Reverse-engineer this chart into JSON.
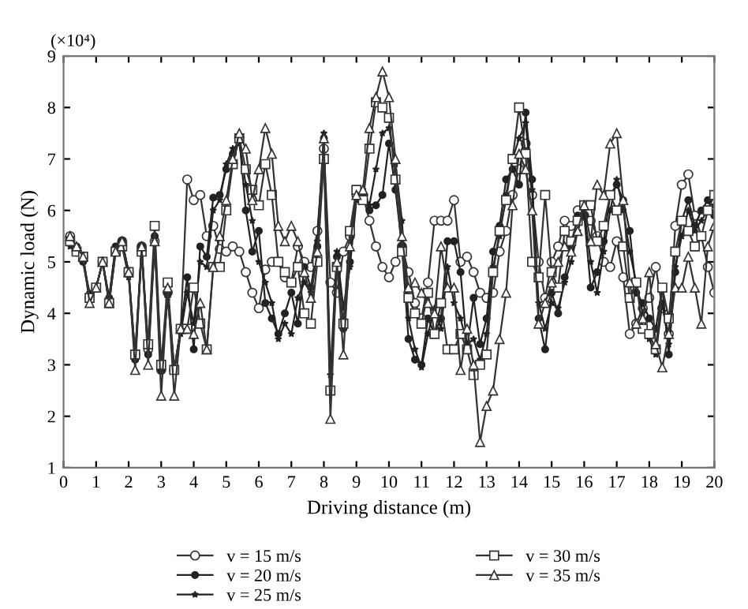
{
  "chart_data": {
    "type": "line",
    "xlabel": "Driving distance (m)",
    "ylabel": "Dynamic load (N)",
    "annotations": [
      "(×10⁴)"
    ],
    "xlim": [
      0,
      20
    ],
    "xticks": [
      0,
      1,
      2,
      3,
      4,
      5,
      6,
      7,
      8,
      9,
      10,
      11,
      12,
      13,
      14,
      15,
      16,
      17,
      18,
      19,
      20
    ],
    "ylim": [
      1,
      9
    ],
    "yticks": [
      1,
      2,
      3,
      4,
      5,
      6,
      7,
      8,
      9
    ],
    "grid": false,
    "legend": "bottom",
    "x": [
      0.2,
      0.4,
      0.6,
      0.8,
      1.0,
      1.2,
      1.4,
      1.6,
      1.8,
      2.0,
      2.2,
      2.4,
      2.6,
      2.8,
      3.0,
      3.2,
      3.4,
      3.6,
      3.8,
      4.0,
      4.2,
      4.4,
      4.6,
      4.8,
      5.0,
      5.2,
      5.4,
      5.6,
      5.8,
      6.0,
      6.2,
      6.4,
      6.6,
      6.8,
      7.0,
      7.2,
      7.4,
      7.6,
      7.8,
      8.0,
      8.2,
      8.4,
      8.6,
      8.8,
      9.0,
      9.2,
      9.4,
      9.6,
      9.8,
      10.0,
      10.2,
      10.4,
      10.6,
      10.8,
      11.0,
      11.2,
      11.4,
      11.6,
      11.8,
      12.0,
      12.2,
      12.4,
      12.6,
      12.8,
      13.0,
      13.2,
      13.4,
      13.6,
      13.8,
      14.0,
      14.2,
      14.4,
      14.6,
      14.8,
      15.0,
      15.2,
      15.4,
      15.6,
      15.8,
      16.0,
      16.2,
      16.4,
      16.6,
      16.8,
      17.0,
      17.2,
      17.4,
      17.6,
      17.8,
      18.0,
      18.2,
      18.4,
      18.6,
      18.8,
      19.0,
      19.2,
      19.4,
      19.6,
      19.8,
      20.0
    ],
    "series": [
      {
        "name": "v = 15 m/s",
        "color": "#333333",
        "marker": "circle",
        "values": [
          5.5,
          5.2,
          5.1,
          4.3,
          4.5,
          5.0,
          4.2,
          5.2,
          5.4,
          4.8,
          3.2,
          5.3,
          3.3,
          5.4,
          2.9,
          4.4,
          2.9,
          3.7,
          6.6,
          6.2,
          6.3,
          5.5,
          5.7,
          5.25,
          5.2,
          5.3,
          5.2,
          4.8,
          4.4,
          4.1,
          4.85,
          5.0,
          5.0,
          4.7,
          4.6,
          5.3,
          5.0,
          4.9,
          5.6,
          7.2,
          4.6,
          4.4,
          5.2,
          5.5,
          6.3,
          6.3,
          5.8,
          5.3,
          4.9,
          4.7,
          5.0,
          5.3,
          4.8,
          4.2,
          3.9,
          4.6,
          5.8,
          5.8,
          5.8,
          6.2,
          5.0,
          5.1,
          4.8,
          4.4,
          4.3,
          4.4,
          5.2,
          5.6,
          6.3,
          6.8,
          7.3,
          6.3,
          5.0,
          4.3,
          5.0,
          5.3,
          5.8,
          5.7,
          6.0,
          5.9,
          5.8,
          5.5,
          5.0,
          4.9,
          5.4,
          4.7,
          3.6,
          3.8,
          4.1,
          4.3,
          4.9,
          4.1,
          3.6,
          5.7,
          6.5,
          6.7,
          5.9,
          5.5,
          4.9,
          4.4
        ]
      },
      {
        "name": "v = 20 m/s",
        "color": "#222222",
        "marker": "circle",
        "values": [
          5.4,
          5.3,
          5.0,
          4.3,
          4.5,
          5.0,
          4.3,
          5.3,
          5.4,
          4.8,
          3.1,
          5.3,
          3.2,
          5.5,
          2.9,
          4.4,
          2.9,
          3.7,
          4.7,
          3.3,
          5.3,
          5.1,
          6.25,
          6.3,
          6.8,
          7.1,
          7.4,
          6.0,
          5.2,
          5.6,
          4.2,
          3.9,
          3.6,
          4.0,
          4.4,
          3.8,
          4.9,
          4.5,
          5.3,
          7.4,
          2.5,
          5.1,
          3.7,
          5.0,
          6.4,
          6.3,
          6.0,
          6.1,
          6.3,
          7.3,
          6.4,
          5.3,
          3.5,
          3.1,
          3.0,
          3.9,
          3.6,
          3.9,
          5.4,
          5.4,
          4.8,
          3.3,
          4.3,
          3.4,
          3.9,
          5.2,
          5.7,
          6.6,
          6.8,
          6.5,
          7.9,
          6.6,
          3.9,
          3.3,
          4.4,
          4.0,
          4.7,
          5.3,
          5.9,
          5.9,
          4.5,
          4.8,
          5.4,
          6.3,
          6.5,
          6.2,
          5.6,
          4.4,
          4.2,
          3.9,
          3.7,
          4.5,
          3.2,
          4.8,
          5.8,
          6.2,
          5.7,
          6.0,
          6.2,
          5.9
        ]
      },
      {
        "name": "v = 25 m/s",
        "color": "#222222",
        "marker": "star",
        "values": [
          5.3,
          5.3,
          5.0,
          4.4,
          4.5,
          5.0,
          4.3,
          5.3,
          5.3,
          4.7,
          3.1,
          5.2,
          3.2,
          5.4,
          2.9,
          4.3,
          2.9,
          3.6,
          4.4,
          3.8,
          5.0,
          4.9,
          6.0,
          6.2,
          6.9,
          7.2,
          7.3,
          6.5,
          5.8,
          5.0,
          4.6,
          4.2,
          3.5,
          3.8,
          3.6,
          4.3,
          4.6,
          4.4,
          5.4,
          7.5,
          2.8,
          5.2,
          4.1,
          4.9,
          6.2,
          6.4,
          6.1,
          6.8,
          7.5,
          7.6,
          6.9,
          5.8,
          3.9,
          3.3,
          2.95,
          3.6,
          4.1,
          3.7,
          4.9,
          4.2,
          3.9,
          3.4,
          3.5,
          3.1,
          3.6,
          4.9,
          5.5,
          6.3,
          7.0,
          7.4,
          7.7,
          6.4,
          4.2,
          3.7,
          4.2,
          4.1,
          4.6,
          5.0,
          5.6,
          6.0,
          5.0,
          4.4,
          5.2,
          6.0,
          6.6,
          6.0,
          5.2,
          4.6,
          4.0,
          3.5,
          3.2,
          4.2,
          3.4,
          4.9,
          5.5,
          6.0,
          5.6,
          5.8,
          6.0,
          6.1
        ]
      },
      {
        "name": "v = 30 m/s",
        "color": "#333333",
        "marker": "square",
        "values": [
          5.4,
          5.2,
          5.1,
          4.3,
          4.5,
          5.0,
          4.2,
          5.2,
          5.3,
          4.8,
          3.2,
          5.2,
          3.4,
          5.7,
          3.0,
          4.6,
          2.9,
          3.7,
          3.7,
          4.5,
          3.8,
          3.3,
          4.9,
          4.9,
          6.0,
          6.9,
          7.4,
          6.8,
          6.4,
          6.1,
          6.9,
          6.3,
          5.0,
          4.8,
          4.6,
          4.9,
          4.0,
          3.8,
          5.0,
          7.0,
          2.5,
          4.9,
          3.8,
          5.6,
          6.4,
          6.2,
          7.2,
          8.1,
          8.0,
          7.8,
          6.6,
          5.2,
          4.3,
          4.0,
          3.8,
          4.4,
          3.6,
          4.2,
          3.3,
          3.3,
          3.6,
          3.3,
          2.8,
          3.0,
          3.2,
          4.8,
          5.6,
          6.2,
          7.0,
          8.0,
          7.1,
          5.0,
          4.7,
          6.3,
          4.8,
          4.5,
          5.6,
          5.4,
          5.8,
          6.1,
          6.1,
          5.4,
          5.7,
          6.3,
          6.0,
          5.3,
          4.3,
          4.6,
          3.7,
          3.6,
          3.3,
          4.5,
          3.9,
          5.2,
          5.8,
          5.6,
          5.3,
          5.5,
          6.0,
          6.3
        ]
      },
      {
        "name": "v = 35 m/s",
        "color": "#333333",
        "marker": "triangle",
        "values": [
          5.5,
          5.3,
          5.1,
          4.2,
          4.5,
          5.0,
          4.2,
          5.2,
          5.4,
          4.8,
          2.9,
          5.3,
          3.0,
          5.4,
          2.4,
          4.5,
          2.4,
          3.7,
          3.7,
          3.6,
          4.2,
          3.3,
          4.9,
          5.5,
          6.2,
          7.0,
          7.5,
          7.2,
          6.2,
          6.8,
          7.6,
          7.1,
          5.7,
          5.4,
          5.7,
          5.4,
          4.8,
          4.3,
          5.2,
          7.4,
          1.95,
          5.0,
          3.2,
          5.3,
          6.3,
          6.4,
          7.6,
          8.2,
          8.7,
          8.2,
          7.0,
          5.5,
          4.5,
          4.6,
          4.4,
          4.2,
          4.0,
          5.3,
          4.5,
          4.5,
          2.9,
          3.7,
          3.0,
          1.5,
          2.2,
          2.5,
          3.5,
          4.4,
          6.1,
          7.1,
          6.8,
          6.0,
          3.8,
          4.2,
          4.6,
          5.0,
          5.3,
          5.2,
          5.6,
          6.1,
          5.4,
          6.5,
          6.3,
          7.3,
          7.5,
          6.2,
          4.6,
          3.8,
          3.9,
          4.8,
          3.4,
          2.95,
          3.6,
          4.5,
          4.5,
          5.1,
          4.5,
          3.8,
          5.3,
          5.7
        ]
      }
    ]
  }
}
